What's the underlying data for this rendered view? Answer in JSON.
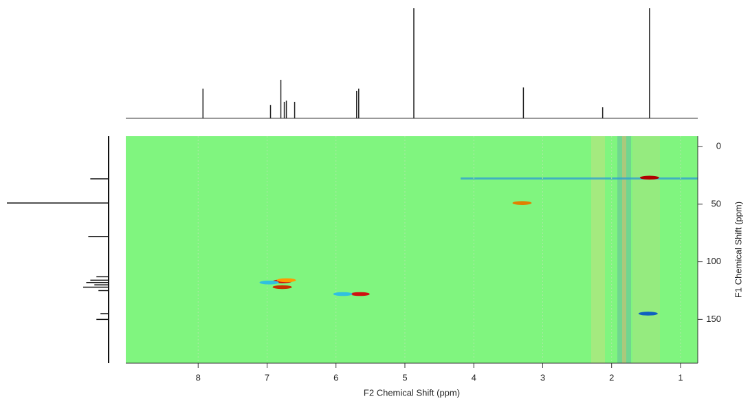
{
  "chart_data": {
    "type": "hsqc",
    "x_label": "F2 Chemical Shift (ppm)",
    "y_label": "F1 Chemical Shift (ppm)",
    "xlim": [
      9.05,
      0.75
    ],
    "ylim": [
      -9,
      188
    ],
    "xticks": [
      8,
      7,
      6,
      5,
      4,
      3,
      2,
      1
    ],
    "yticks": [
      0,
      50,
      100,
      150
    ],
    "grid": true,
    "background": "#80f57f",
    "cross_peaks": {
      "x": [
        6.78,
        6.72,
        6.97,
        6.78,
        5.65,
        5.9,
        3.3,
        1.45,
        1.47
      ],
      "y": [
        117,
        116,
        118,
        122,
        128,
        128,
        49,
        27,
        145
      ],
      "colors": [
        "#d01010",
        "#ff9900",
        "#30c0e0",
        "#c83000",
        "#d01010",
        "#30c0e0",
        "#e08000",
        "#b00000",
        "#1060c0"
      ]
    },
    "f2_projection": {
      "x": [
        7.93,
        6.95,
        6.8,
        6.75,
        6.72,
        6.6,
        5.7,
        5.67,
        4.87,
        3.28,
        2.13,
        1.45
      ],
      "values": [
        27,
        12,
        35,
        15,
        16,
        15,
        25,
        27,
        100,
        28,
        10,
        100
      ],
      "ylim": [
        0,
        100
      ]
    },
    "f1_projection": {
      "x": [
        28,
        49,
        78,
        113,
        116,
        118,
        120,
        122,
        125,
        145,
        150
      ],
      "values": [
        18,
        100,
        20,
        12,
        18,
        22,
        14,
        25,
        10,
        8,
        12
      ],
      "ylim": [
        0,
        100
      ]
    }
  }
}
